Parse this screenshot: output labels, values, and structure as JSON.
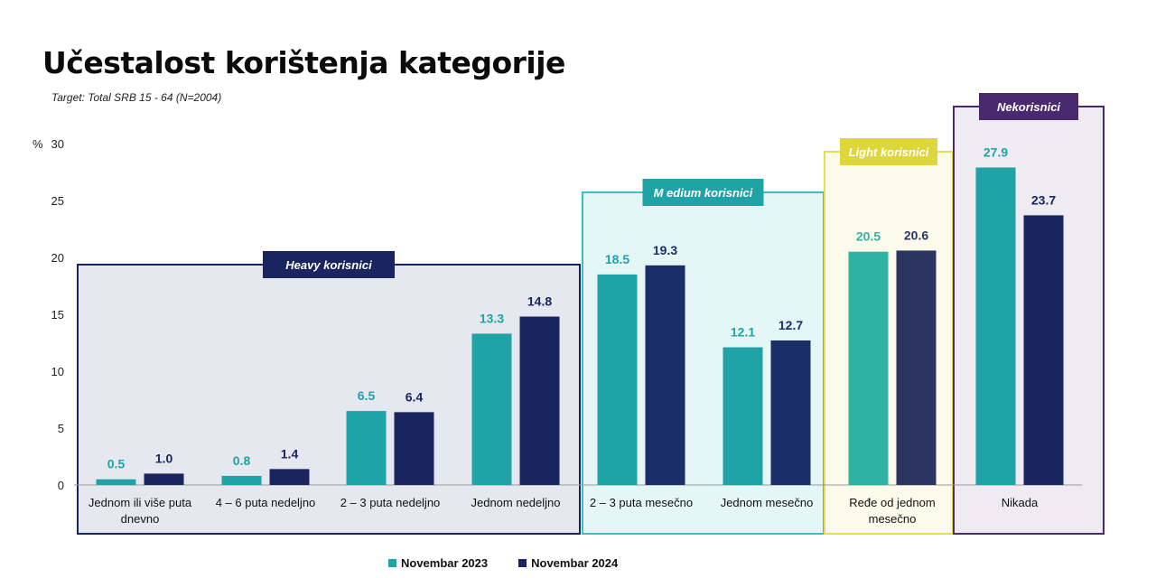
{
  "title": "Učestalost korištenja kategorije",
  "subtitle": "Target: Total SRB 15 - 64 (N=2004)",
  "colors": {
    "nov2023": "#20a3a6",
    "nov2024": "#1a2560"
  },
  "groups": [
    {
      "label": "Heavy korisnici",
      "border": "#1a2560",
      "fill": "#e6e8ef",
      "title_bg": "#1a2560",
      "title_color": "#ffffff",
      "categories": [
        0,
        1,
        2,
        3
      ]
    },
    {
      "label": "M edium korisnici",
      "border": "#3cbfc0",
      "fill": "#e4f6f6",
      "title_bg": "#20a3a6",
      "title_color": "#ffffff",
      "categories": [
        4,
        5
      ]
    },
    {
      "label": "Light korisnici",
      "border": "#e3df4a",
      "fill": "#fcfbeb",
      "title_bg": "#ddd63c",
      "title_color": "#ffffff",
      "categories": [
        6
      ]
    },
    {
      "label": "Nekorisnici",
      "border": "#4a2a6e",
      "fill": "#eeebf3",
      "title_bg": "#4a2a6e",
      "title_color": "#ffffff",
      "categories": [
        7
      ]
    }
  ],
  "chart_data": {
    "type": "bar",
    "ylabel": "%",
    "ylim": [
      0,
      30
    ],
    "yticks": [
      0,
      5,
      10,
      15,
      20,
      25,
      30
    ],
    "categories": [
      "Jednom ili više puta dnevno",
      "4 – 6 puta nedeljno",
      "2 – 3 puta nedeljno",
      "Jednom nedeljno",
      "2 – 3 puta mesečno",
      "Jednom mesečno",
      "Ređe od jednom mesečno",
      "Nikada"
    ],
    "category_lines": [
      [
        "Jednom ili više puta",
        "dnevno"
      ],
      [
        "4 – 6 puta nedeljno"
      ],
      [
        "2 – 3 puta nedeljno"
      ],
      [
        "Jednom nedeljno"
      ],
      [
        "2 – 3 puta mesečno"
      ],
      [
        "Jednom mesečno"
      ],
      [
        "Ređe od jednom",
        "mesečno"
      ],
      [
        "Nikada"
      ]
    ],
    "series": [
      {
        "name": "Novembar 2023",
        "values": [
          0.5,
          0.8,
          6.5,
          13.3,
          18.5,
          12.1,
          20.5,
          27.9
        ]
      },
      {
        "name": "Novembar 2024",
        "values": [
          1.0,
          1.4,
          6.4,
          14.8,
          19.3,
          12.7,
          20.6,
          23.7
        ]
      }
    ],
    "value_labels": [
      [
        "0.5",
        "0.8",
        "6.5",
        "13.3",
        "18.5",
        "12.1",
        "20.5",
        "27.9"
      ],
      [
        "1.0",
        "1.4",
        "6.4",
        "14.8",
        "19.3",
        "12.7",
        "20.6",
        "23.7"
      ]
    ],
    "group_bar_colors": [
      [
        "#20a3a6",
        "#1a2560"
      ],
      [
        "#20a3a6",
        "#1a2f6a"
      ],
      [
        "#2eb3a3",
        "#2c3560"
      ],
      [
        "#20a3a6",
        "#1a2560"
      ]
    ],
    "legend_position": "bottom"
  },
  "legend": [
    {
      "label": "Novembar 2023",
      "color": "#20a3a6"
    },
    {
      "label": "Novembar 2024",
      "color": "#1a2560"
    }
  ]
}
